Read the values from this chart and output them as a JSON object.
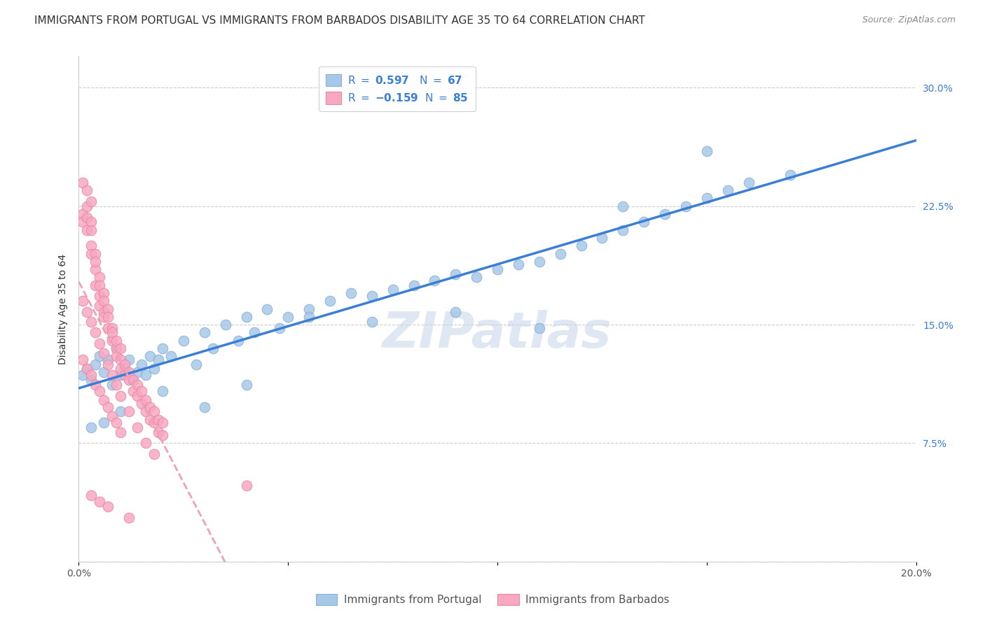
{
  "title": "IMMIGRANTS FROM PORTUGAL VS IMMIGRANTS FROM BARBADOS DISABILITY AGE 35 TO 64 CORRELATION CHART",
  "source": "Source: ZipAtlas.com",
  "ylabel": "Disability Age 35 to 64",
  "xlim": [
    0.0,
    0.2
  ],
  "ylim": [
    0.0,
    0.32
  ],
  "xticks": [
    0.0,
    0.05,
    0.1,
    0.15,
    0.2
  ],
  "xticklabels": [
    "0.0%",
    "",
    "",
    "",
    "20.0%"
  ],
  "yticks": [
    0.0,
    0.075,
    0.15,
    0.225,
    0.3
  ],
  "yticklabels": [
    "",
    "7.5%",
    "15.0%",
    "22.5%",
    "30.0%"
  ],
  "portugal_color": "#a8c8e8",
  "barbados_color": "#f8a8c0",
  "portugal_edge": "#88b0d8",
  "barbados_edge": "#e888a8",
  "regression_portugal_color": "#3a7fd5",
  "regression_barbados_color": "#f0a0b8",
  "R_portugal": 0.597,
  "N_portugal": 67,
  "R_barbados": -0.159,
  "N_barbados": 85,
  "legend_label_portugal": "Immigrants from Portugal",
  "legend_label_barbados": "Immigrants from Barbados",
  "watermark": "ZIPatlas",
  "watermark_color": "#c8d8ea",
  "title_fontsize": 11,
  "axis_label_fontsize": 10,
  "tick_fontsize": 10,
  "legend_fontsize": 11,
  "pt_x": [
    0.001,
    0.002,
    0.003,
    0.004,
    0.005,
    0.006,
    0.007,
    0.008,
    0.009,
    0.01,
    0.011,
    0.012,
    0.013,
    0.014,
    0.015,
    0.016,
    0.017,
    0.018,
    0.019,
    0.02,
    0.022,
    0.025,
    0.028,
    0.03,
    0.032,
    0.035,
    0.038,
    0.04,
    0.042,
    0.045,
    0.048,
    0.05,
    0.055,
    0.06,
    0.065,
    0.07,
    0.075,
    0.08,
    0.085,
    0.09,
    0.095,
    0.1,
    0.105,
    0.11,
    0.115,
    0.12,
    0.125,
    0.13,
    0.135,
    0.14,
    0.145,
    0.15,
    0.155,
    0.16,
    0.003,
    0.006,
    0.01,
    0.02,
    0.03,
    0.04,
    0.055,
    0.07,
    0.09,
    0.11,
    0.13,
    0.15,
    0.17
  ],
  "pt_y": [
    0.118,
    0.122,
    0.115,
    0.125,
    0.13,
    0.12,
    0.128,
    0.112,
    0.135,
    0.118,
    0.122,
    0.128,
    0.115,
    0.12,
    0.125,
    0.118,
    0.13,
    0.122,
    0.128,
    0.135,
    0.13,
    0.14,
    0.125,
    0.145,
    0.135,
    0.15,
    0.14,
    0.155,
    0.145,
    0.16,
    0.148,
    0.155,
    0.16,
    0.165,
    0.17,
    0.168,
    0.172,
    0.175,
    0.178,
    0.182,
    0.18,
    0.185,
    0.188,
    0.19,
    0.195,
    0.2,
    0.205,
    0.21,
    0.215,
    0.22,
    0.225,
    0.23,
    0.235,
    0.24,
    0.085,
    0.088,
    0.095,
    0.108,
    0.098,
    0.112,
    0.155,
    0.152,
    0.158,
    0.148,
    0.225,
    0.26,
    0.245
  ],
  "bb_x": [
    0.001,
    0.001,
    0.001,
    0.002,
    0.002,
    0.002,
    0.002,
    0.003,
    0.003,
    0.003,
    0.003,
    0.003,
    0.004,
    0.004,
    0.004,
    0.004,
    0.005,
    0.005,
    0.005,
    0.005,
    0.006,
    0.006,
    0.006,
    0.006,
    0.007,
    0.007,
    0.007,
    0.008,
    0.008,
    0.008,
    0.009,
    0.009,
    0.009,
    0.01,
    0.01,
    0.01,
    0.011,
    0.011,
    0.012,
    0.012,
    0.013,
    0.013,
    0.014,
    0.014,
    0.015,
    0.015,
    0.016,
    0.016,
    0.017,
    0.017,
    0.018,
    0.018,
    0.019,
    0.019,
    0.02,
    0.02,
    0.001,
    0.002,
    0.003,
    0.004,
    0.005,
    0.006,
    0.007,
    0.008,
    0.009,
    0.01,
    0.012,
    0.014,
    0.016,
    0.018,
    0.001,
    0.002,
    0.003,
    0.004,
    0.005,
    0.006,
    0.007,
    0.008,
    0.009,
    0.01,
    0.003,
    0.005,
    0.007,
    0.012,
    0.04
  ],
  "bb_y": [
    0.22,
    0.24,
    0.215,
    0.225,
    0.218,
    0.235,
    0.21,
    0.228,
    0.215,
    0.2,
    0.195,
    0.21,
    0.185,
    0.195,
    0.175,
    0.19,
    0.18,
    0.168,
    0.175,
    0.162,
    0.17,
    0.158,
    0.165,
    0.155,
    0.16,
    0.148,
    0.155,
    0.148,
    0.14,
    0.145,
    0.135,
    0.14,
    0.13,
    0.128,
    0.135,
    0.122,
    0.118,
    0.125,
    0.115,
    0.12,
    0.108,
    0.115,
    0.105,
    0.112,
    0.1,
    0.108,
    0.095,
    0.102,
    0.09,
    0.098,
    0.088,
    0.095,
    0.082,
    0.09,
    0.08,
    0.088,
    0.165,
    0.158,
    0.152,
    0.145,
    0.138,
    0.132,
    0.125,
    0.118,
    0.112,
    0.105,
    0.095,
    0.085,
    0.075,
    0.068,
    0.128,
    0.122,
    0.118,
    0.112,
    0.108,
    0.102,
    0.098,
    0.092,
    0.088,
    0.082,
    0.042,
    0.038,
    0.035,
    0.028,
    0.048
  ]
}
